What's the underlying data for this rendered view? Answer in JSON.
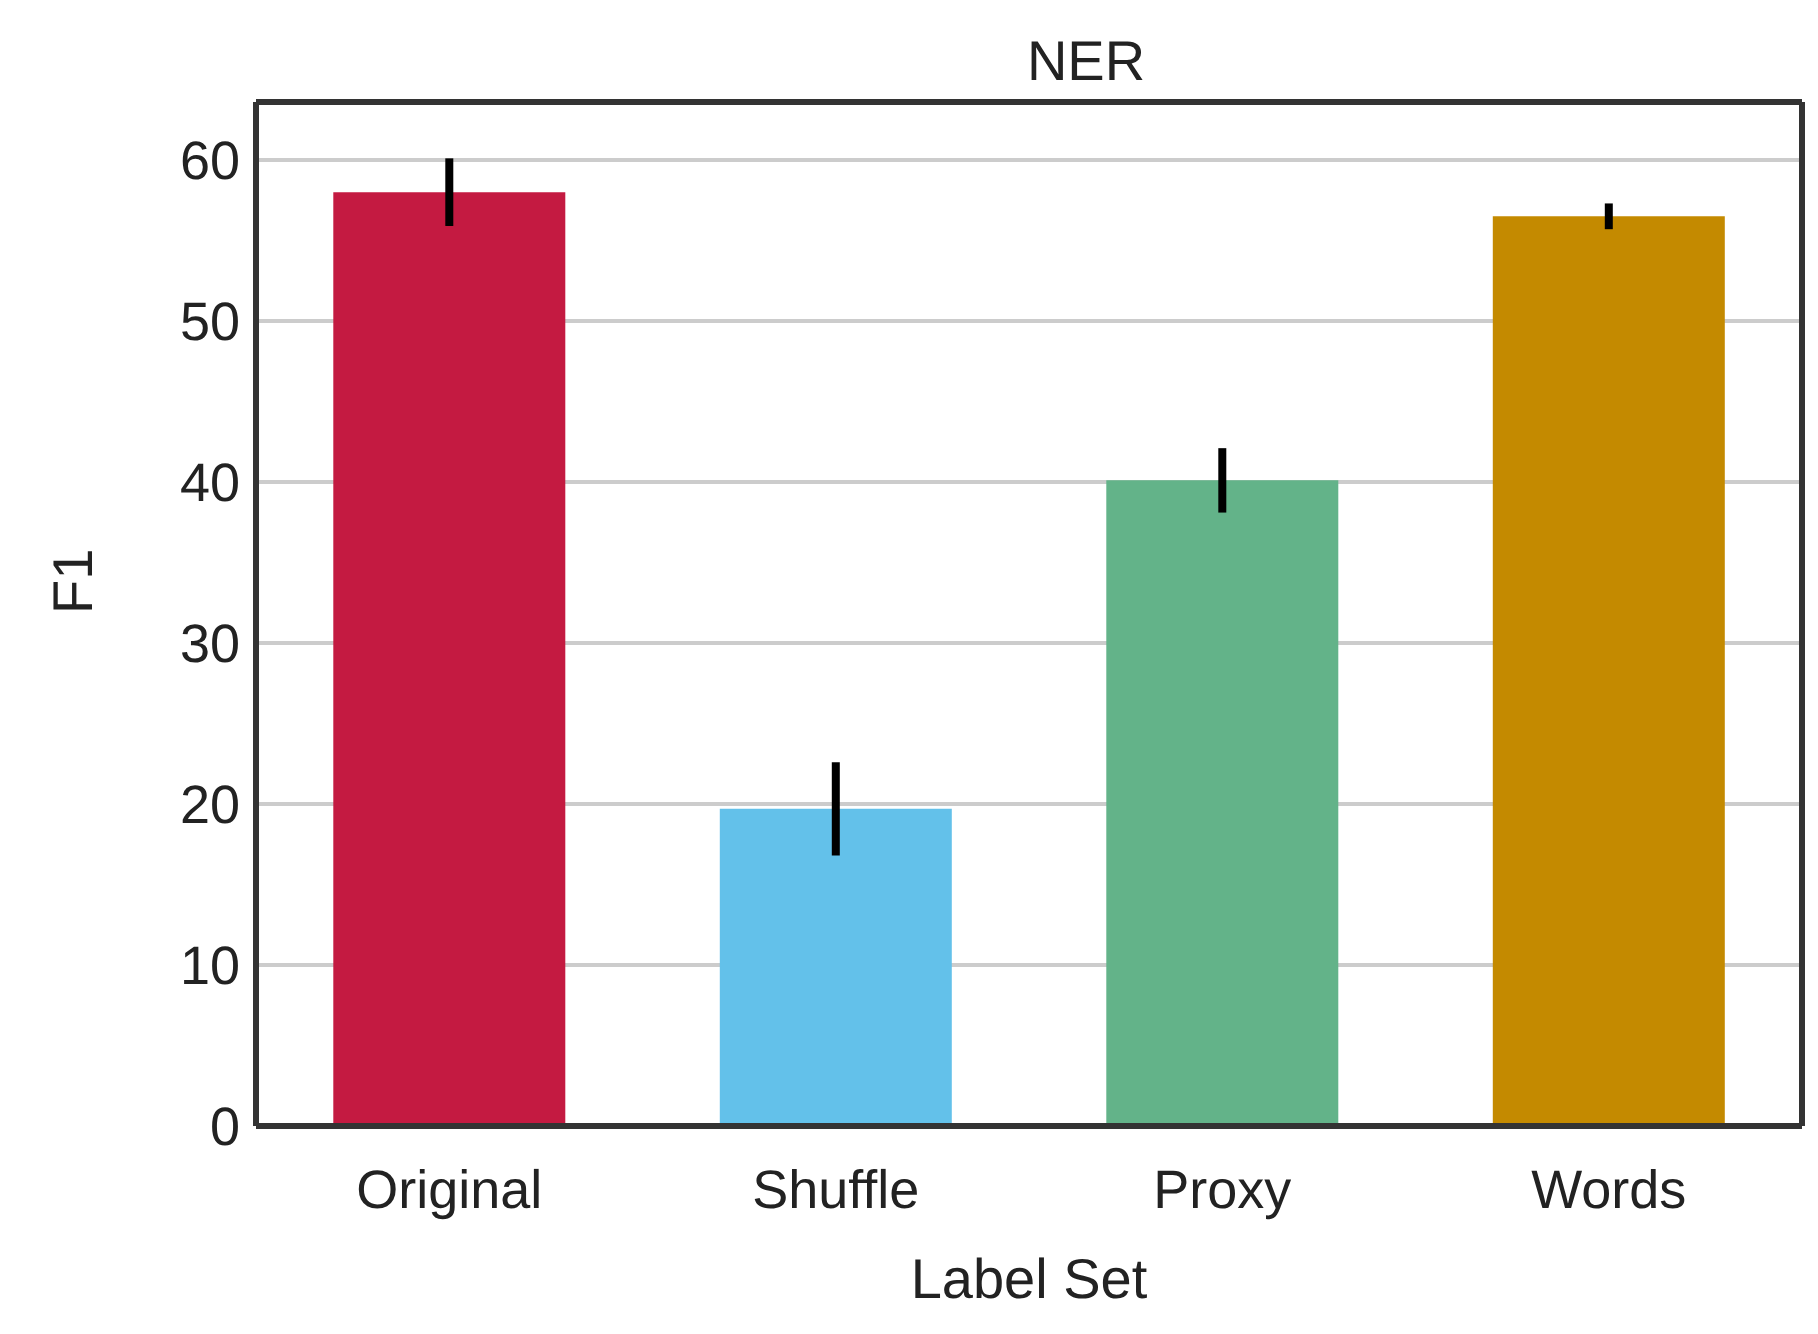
{
  "chart_data": {
    "type": "bar",
    "title": "NER",
    "xlabel": "Label Set",
    "ylabel": "F1",
    "categories": [
      "Original",
      "Shuffle",
      "Proxy",
      "Words"
    ],
    "values": [
      58,
      19.7,
      40.1,
      56.5
    ],
    "errors": [
      2.1,
      2.9,
      2,
      0.8
    ],
    "colors": [
      "#c41a41",
      "#63c1ea",
      "#63b389",
      "#c48a00"
    ],
    "ylim": [
      0,
      63.6
    ],
    "yticks": [
      0,
      10,
      20,
      30,
      40,
      50,
      60
    ],
    "grid": "y"
  }
}
